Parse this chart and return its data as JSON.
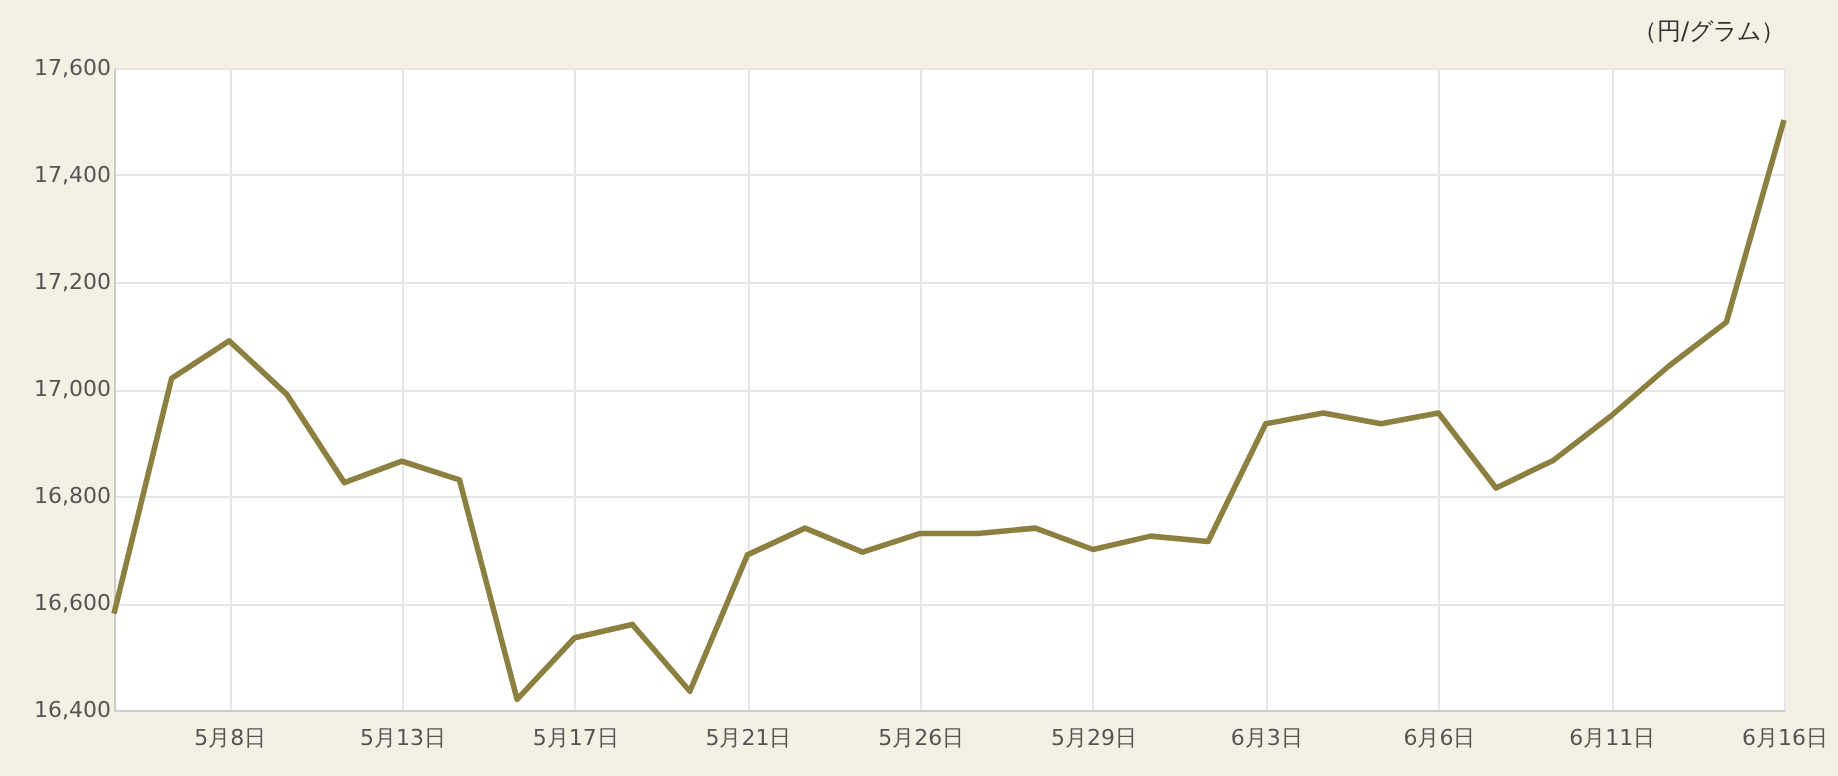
{
  "chart_data": {
    "type": "line",
    "ylabel": "（円/グラム）",
    "categories": [
      null,
      null,
      "5月8日",
      null,
      null,
      "5月13日",
      null,
      null,
      "5月17日",
      null,
      null,
      "5月21日",
      null,
      null,
      "5月26日",
      null,
      null,
      "5月29日",
      null,
      null,
      "6月3日",
      null,
      null,
      "6月6日",
      null,
      null,
      "6月11日",
      null,
      null,
      "6月16日"
    ],
    "series": [
      {
        "color": "#8b8040",
        "values": [
          16580,
          17020,
          17090,
          16990,
          16825,
          16865,
          16830,
          16420,
          16535,
          16560,
          16435,
          16690,
          16740,
          16695,
          16730,
          16730,
          16740,
          16700,
          16725,
          16715,
          16935,
          16955,
          16935,
          16955,
          16815,
          16867,
          16950,
          17043,
          17125,
          17503
        ]
      }
    ],
    "ylim": [
      16400,
      17600
    ],
    "yticks": [
      {
        "value": 16400,
        "label": "16,400"
      },
      {
        "value": 16600,
        "label": "16,600"
      },
      {
        "value": 16800,
        "label": "16,800"
      },
      {
        "value": 17000,
        "label": "17,000"
      },
      {
        "value": 17200,
        "label": "17,200"
      },
      {
        "value": 17400,
        "label": "17,400"
      },
      {
        "value": 17600,
        "label": "17,600"
      }
    ],
    "grid": true,
    "marker": "none",
    "line_style": "solid"
  }
}
